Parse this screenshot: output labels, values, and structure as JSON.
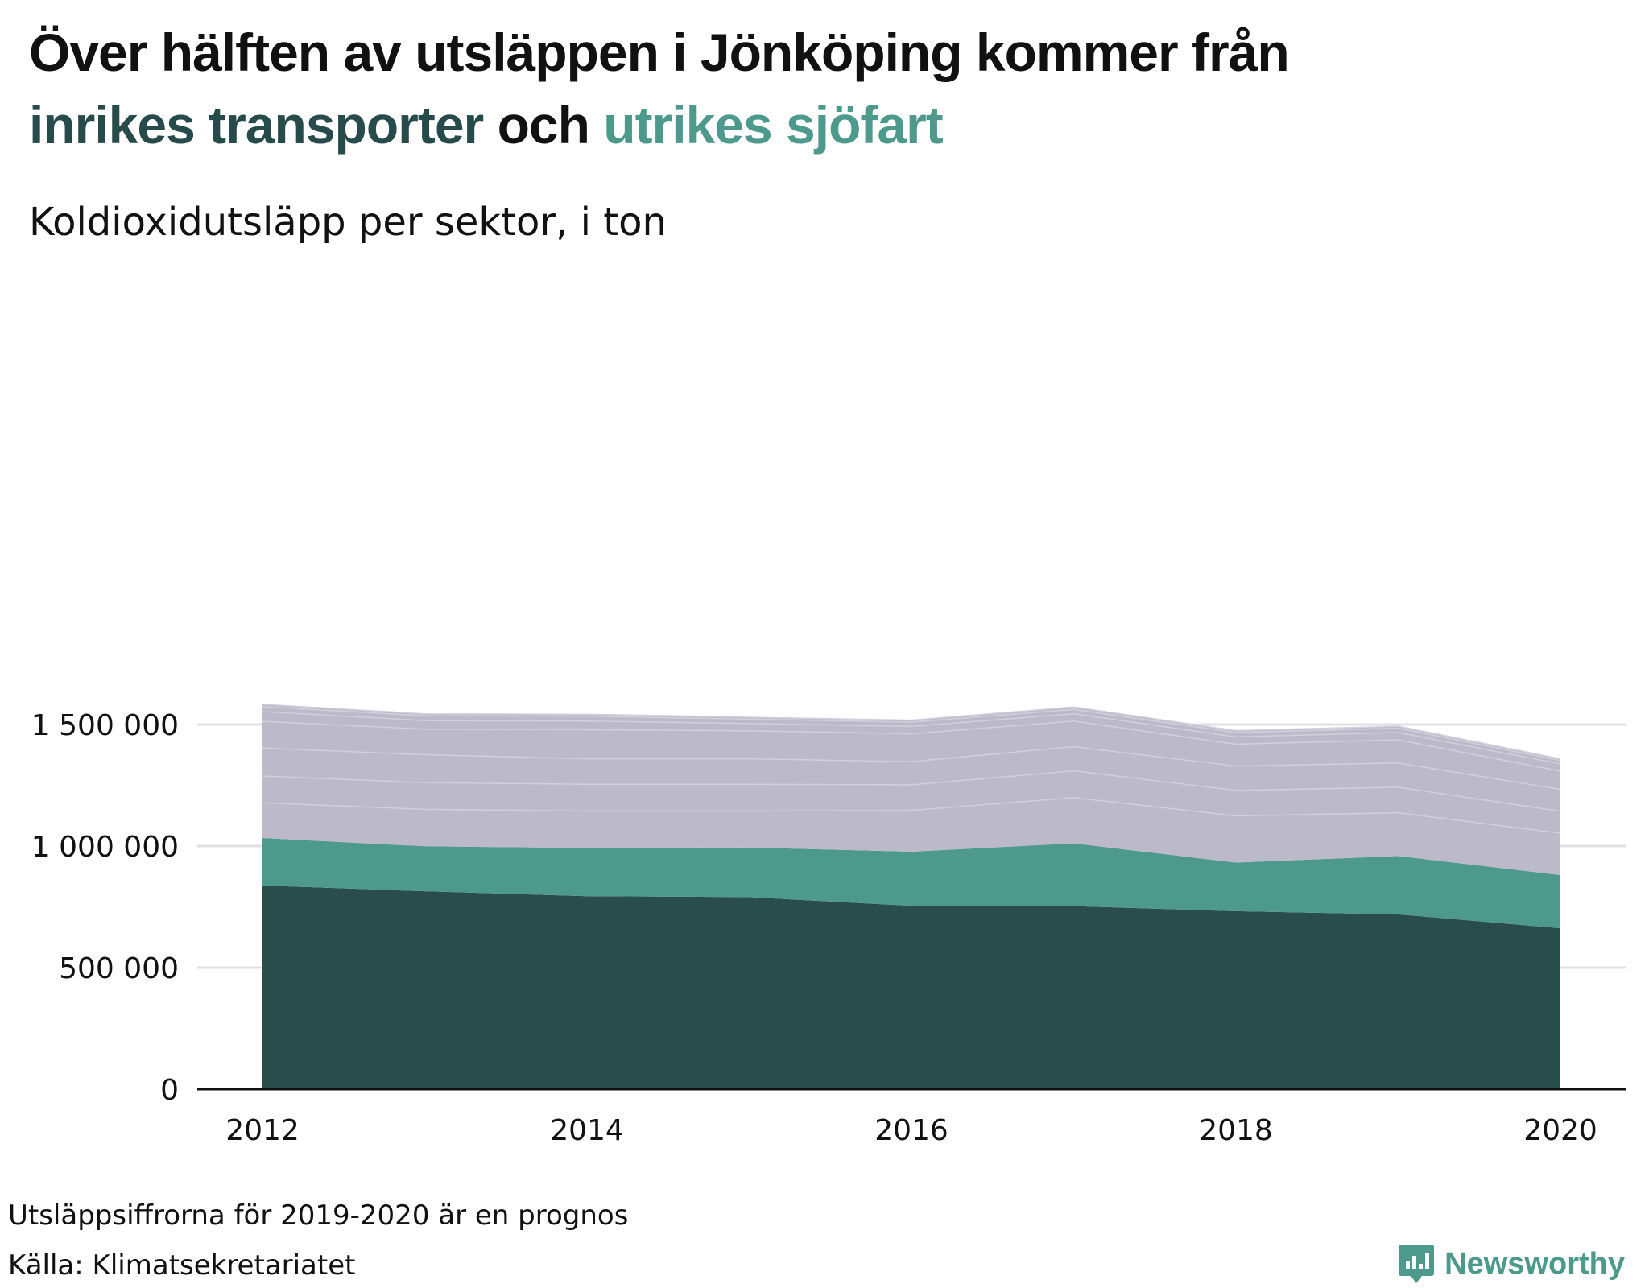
{
  "title": {
    "part1": "Över hälften av utsläppen i Jönköping kommer från",
    "part2": "inrikes transporter",
    "part3": "och",
    "part4": "utrikes sjöfart"
  },
  "subtitle": "Koldioxidutsläpp per sektor, i ton",
  "footnote": "Utsläppsiffrorna för 2019-2020 är en prognos",
  "source": "Källa: Klimatsekretariatet",
  "brand": {
    "name": "Newsworthy",
    "icon": "newsworthy-logo-icon"
  },
  "colors": {
    "inrikes_transporter": "#284d4b",
    "utrikes_sjofart": "#4d998b",
    "other": "#bcbac9",
    "gridline": "#e0e0e0",
    "baseline": "#111111"
  },
  "chart_data": {
    "type": "area",
    "stacked": true,
    "x": [
      2012,
      2013,
      2014,
      2015,
      2016,
      2017,
      2018,
      2019,
      2020
    ],
    "xticks": [
      "2012",
      "2014",
      "2016",
      "2018",
      "2020"
    ],
    "yticks": [
      0,
      500000,
      1000000,
      1500000
    ],
    "ytick_labels": [
      "0",
      "500 000",
      "1 000 000",
      "1 500 000"
    ],
    "ylim": [
      0,
      1600000
    ],
    "grid": "horizontal",
    "series": [
      {
        "name": "inrikes transporter",
        "color": "#284d4b",
        "values": [
          838000,
          814000,
          794000,
          790000,
          754000,
          753000,
          732000,
          719000,
          662000
        ]
      },
      {
        "color": "#4d998b",
        "values": [
          195000,
          185000,
          198000,
          204000,
          223000,
          258000,
          200000,
          240000,
          219000
        ]
      },
      {
        "color": "#bcbac9",
        "values": [
          145000,
          152000,
          152000,
          150000,
          170000,
          188000,
          192000,
          178000,
          172000
        ]
      },
      {
        "color": "#bcbac9",
        "values": [
          110000,
          110000,
          110000,
          110000,
          105000,
          110000,
          105000,
          105000,
          90000
        ]
      },
      {
        "color": "#bcbac9",
        "values": [
          115000,
          115000,
          105000,
          105000,
          95000,
          100000,
          100000,
          100000,
          90000
        ]
      },
      {
        "color": "#bcbac9",
        "values": [
          110000,
          105000,
          120000,
          115000,
          115000,
          105000,
          90000,
          95000,
          75000
        ]
      },
      {
        "color": "#bcbac9",
        "values": [
          40000,
          35000,
          35000,
          30000,
          30000,
          30000,
          30000,
          30000,
          30000
        ]
      },
      {
        "color": "#bcbac9",
        "values": [
          20000,
          20000,
          20000,
          18000,
          18000,
          18000,
          18000,
          18000,
          14000
        ]
      },
      {
        "color": "#bcbac9",
        "values": [
          10000,
          8000,
          8000,
          8000,
          8000,
          10000,
          8000,
          8000,
          7000
        ]
      }
    ]
  }
}
